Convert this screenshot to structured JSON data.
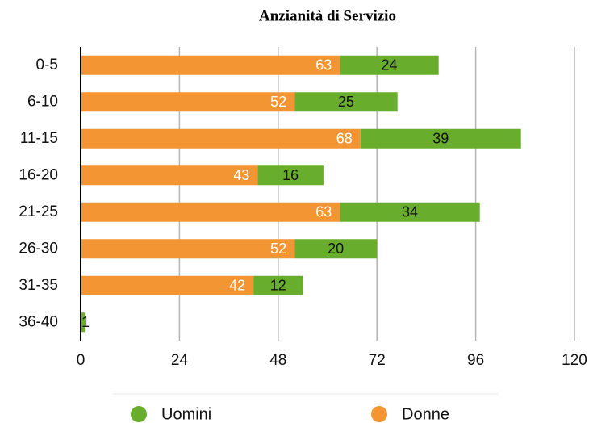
{
  "chart_data": {
    "type": "stacked_barh",
    "title": "Anzianità di Servizio",
    "categories": [
      "0-5",
      "6-10",
      "11-15",
      "16-20",
      "21-25",
      "26-30",
      "31-35",
      "36-40"
    ],
    "series": [
      {
        "name": "Donne",
        "color": "#f39533",
        "values": [
          63,
          52,
          68,
          43,
          63,
          52,
          42,
          0
        ]
      },
      {
        "name": "Uomini",
        "color": "#69ad2c",
        "values": [
          24,
          25,
          39,
          16,
          34,
          20,
          12,
          1
        ]
      }
    ],
    "xlim": [
      0,
      120
    ],
    "xticks": [
      0,
      24,
      48,
      72,
      96,
      120
    ],
    "grid": true
  }
}
